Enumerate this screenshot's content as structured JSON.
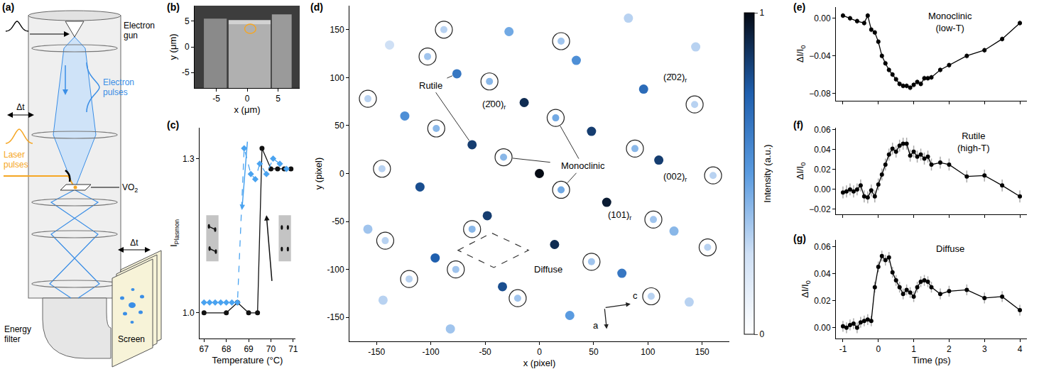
{
  "diagram": {
    "panel": "(a)",
    "electron_gun": "Electron gun",
    "electron_pulses": "Electron pulses",
    "delay": "Δt",
    "laser_pulses": "Laser pulses",
    "sample": "VO",
    "sample_sub": "2",
    "energy_filter": "Energy filter",
    "screen": "Screen",
    "screen_delay": "Δt"
  },
  "chart_data": [
    {
      "panel": "(b)",
      "type": "image",
      "xlabel": "x (μm)",
      "ylabel": "y (μm)",
      "xlim": [
        -8.5,
        8.5
      ],
      "ylim": [
        -8,
        8
      ],
      "xticks": [
        -5,
        0,
        5
      ],
      "yticks": [
        -5,
        0,
        5
      ],
      "highlight": {
        "x": 0.5,
        "y": 3.5,
        "r": 0.9,
        "color": "#f5a623"
      }
    },
    {
      "panel": "(c)",
      "type": "line",
      "xlabel": "Temperature (°C)",
      "ylabel": "I",
      "ylabel_sub": "Plasmon",
      "xlim": [
        66.8,
        71.1
      ],
      "ylim": [
        0.95,
        1.36
      ],
      "xticks": [
        67,
        68,
        69,
        70,
        71
      ],
      "yticks": [
        {
          "value": 1.0,
          "label": "1.0"
        },
        {
          "value": 1.3,
          "label": "1.3"
        }
      ],
      "series": [
        {
          "color": "#111111",
          "marker": "circle",
          "line_style": "solid",
          "x": [
            67,
            68,
            68.5,
            69,
            69.4,
            69.6,
            70,
            70.3,
            70.6,
            70.9
          ],
          "values": [
            1.0,
            1.0,
            1.02,
            1.0,
            1.0,
            1.32,
            1.28,
            1.28,
            1.28,
            1.28
          ]
        },
        {
          "color": "#4aa3f0",
          "marker": "diamond",
          "line_style": "dashed",
          "x": [
            67,
            67.25,
            67.5,
            67.75,
            68,
            68.25,
            68.5,
            68.8,
            69.1,
            69.3,
            69.5,
            69.8,
            70.1,
            70.4,
            70.7
          ],
          "values": [
            1.02,
            1.02,
            1.02,
            1.02,
            1.02,
            1.02,
            1.02,
            1.32,
            1.27,
            1.26,
            1.29,
            1.27,
            1.3,
            1.29,
            1.28
          ]
        }
      ]
    },
    {
      "panel": "(d)",
      "type": "scatter",
      "xlabel": "x (pixel)",
      "ylabel": "y (pixel)",
      "xlim": [
        -175,
        175
      ],
      "ylim": [
        -175,
        175
      ],
      "xticks": [
        -150,
        -100,
        -50,
        0,
        50,
        100,
        150
      ],
      "yticks": [
        -150,
        -100,
        -50,
        0,
        50,
        100,
        150
      ],
      "colorbar": {
        "title": "Intensity (a.u.)",
        "range": [
          0,
          1
        ],
        "ticks": [
          0,
          1
        ]
      },
      "series": [
        {
          "marker": "circle",
          "x": [
            0,
            62,
            -62,
            14,
            -14,
            110,
            -110,
            -48,
            48,
            96,
            -96,
            34,
            -34,
            -76,
            76,
            -158,
            -28,
            28,
            124,
            -124,
            -144,
            144,
            82,
            -82,
            -138,
            138
          ],
          "y": [
            0,
            -30,
            30,
            -74,
            74,
            14,
            -14,
            -44,
            44,
            88,
            -88,
            118,
            -118,
            104,
            -104,
            -58,
            148,
            -148,
            -60,
            60,
            -132,
            132,
            162,
            -162,
            134,
            -134
          ],
          "values": [
            1.0,
            0.95,
            0.85,
            0.9,
            0.9,
            0.85,
            0.8,
            0.85,
            0.85,
            0.7,
            0.75,
            0.55,
            0.8,
            0.65,
            0.65,
            0.35,
            0.45,
            0.5,
            0.4,
            0.55,
            0.3,
            0.3,
            0.3,
            0.35,
            0.25,
            0.3
          ]
        },
        {
          "marker": "circle-open",
          "x": [
            -158,
            -103,
            -46,
            20,
            -95,
            15,
            88,
            143,
            -145,
            -33,
            20,
            160,
            -62,
            105,
            -142,
            48,
            155,
            -77,
            -20,
            103,
            -120,
            -88
          ],
          "y": [
            78,
            122,
            96,
            138,
            47,
            58,
            26,
            72,
            5,
            17,
            -17,
            -2,
            -58,
            -48,
            -70,
            -92,
            -77,
            -100,
            -130,
            -128,
            -110,
            150
          ],
          "values": [
            0.3,
            0.35,
            0.4,
            0.35,
            0.4,
            0.45,
            0.4,
            0.3,
            0.3,
            0.4,
            0.45,
            0.3,
            0.4,
            0.35,
            0.3,
            0.35,
            0.3,
            0.35,
            0.35,
            0.3,
            0.3,
            0.3
          ]
        }
      ],
      "labels": [
        {
          "text": "Rutile",
          "series": 0,
          "targets": [
            13,
            2
          ]
        },
        {
          "text": "Monoclinic",
          "series": 1,
          "targets": [
            5,
            9,
            10
          ]
        }
      ],
      "miller_labels": [
        {
          "text": "(2̄00)",
          "sub": "r",
          "spot": 4
        },
        {
          "text": "(101)",
          "sub": "r",
          "spot": 1
        },
        {
          "text": "(002)",
          "sub": "r",
          "spot": 5
        },
        {
          "text": "(2̄02)",
          "sub": "r",
          "spot": 9
        }
      ],
      "region": {
        "text": "Diffuse",
        "points": [
          [
            -75,
            -80
          ],
          [
            -44,
            -62
          ],
          [
            -10,
            -80
          ],
          [
            -42,
            -98
          ]
        ]
      },
      "axes_labels": [
        "a",
        "c"
      ]
    },
    {
      "panel": "(e)",
      "type": "line",
      "title": [
        "Monoclinic",
        "(low-T)"
      ],
      "ylabel": "ΔI/I",
      "ylabel_sub": "0",
      "tick_labels": "y",
      "xlim": [
        -1.2,
        4.2
      ],
      "ylim": [
        -0.088,
        0.012
      ],
      "xticks": [
        -1,
        0,
        1,
        2,
        3,
        4
      ],
      "yticks": [
        {
          "value": -0.08,
          "label": "−0.08"
        },
        {
          "value": -0.04,
          "label": "−0.04"
        },
        {
          "value": 0,
          "label": "0.00"
        }
      ],
      "x": [
        -1,
        -0.8,
        -0.6,
        -0.4,
        -0.3,
        -0.2,
        -0.1,
        0,
        0.1,
        0.2,
        0.3,
        0.4,
        0.5,
        0.6,
        0.7,
        0.8,
        0.9,
        1.0,
        1.1,
        1.2,
        1.3,
        1.4,
        1.5,
        1.75,
        2,
        2.5,
        3,
        3.5,
        4
      ],
      "series": [
        {
          "color": "#000000",
          "marker": "circle",
          "line_style": "solid",
          "error": 0.003,
          "values": [
            0.003,
            0,
            -0.003,
            -0.005,
            0.003,
            -0.012,
            -0.015,
            -0.025,
            -0.04,
            -0.048,
            -0.055,
            -0.06,
            -0.065,
            -0.07,
            -0.072,
            -0.072,
            -0.074,
            -0.071,
            -0.068,
            -0.07,
            -0.064,
            -0.064,
            -0.063,
            -0.055,
            -0.05,
            -0.04,
            -0.034,
            -0.022,
            -0.005
          ]
        }
      ]
    },
    {
      "panel": "(f)",
      "type": "line",
      "title": [
        "Rutile",
        "(high-T)"
      ],
      "ylabel": "ΔI/I",
      "ylabel_sub": "0",
      "tick_labels": "y",
      "xlim": [
        -1.2,
        4.2
      ],
      "ylim": [
        -0.025,
        0.062
      ],
      "xticks": [
        -1,
        0,
        1,
        2,
        3,
        4
      ],
      "yticks": [
        {
          "value": -0.02,
          "label": "−0.02"
        },
        {
          "value": 0,
          "label": "0.00"
        },
        {
          "value": 0.02,
          "label": "0.02"
        },
        {
          "value": 0.04,
          "label": "0.04"
        },
        {
          "value": 0.06,
          "label": "0.06"
        }
      ],
      "x": [
        -1,
        -0.9,
        -0.8,
        -0.7,
        -0.6,
        -0.5,
        -0.4,
        -0.3,
        -0.2,
        -0.1,
        0,
        0.1,
        0.2,
        0.3,
        0.4,
        0.5,
        0.6,
        0.7,
        0.8,
        0.9,
        1.0,
        1.1,
        1.2,
        1.3,
        1.4,
        1.5,
        1.75,
        2,
        2.5,
        3,
        3.5,
        4
      ],
      "series": [
        {
          "color": "#000000",
          "marker": "circle",
          "line_style": "solid",
          "error": 0.006,
          "values": [
            -0.003,
            -0.002,
            0,
            -0.002,
            0,
            0.004,
            -0.007,
            -0.008,
            -0.001,
            -0.007,
            0.005,
            0.015,
            0.025,
            0.035,
            0.041,
            0.038,
            0.044,
            0.046,
            0.046,
            0.034,
            0.038,
            0.033,
            0.035,
            0.031,
            0.033,
            0.025,
            0.027,
            0.025,
            0.013,
            0.014,
            0.004,
            -0.007
          ]
        }
      ]
    },
    {
      "panel": "(g)",
      "type": "line",
      "title": [
        "Diffuse"
      ],
      "xlabel": "Time (ps)",
      "ylabel": "ΔI/I",
      "ylabel_sub": "0",
      "xlim": [
        -1.2,
        4.2
      ],
      "ylim": [
        -0.008,
        0.065
      ],
      "xticks": [
        -1,
        0,
        1,
        2,
        3,
        4
      ],
      "yticks": [
        {
          "value": 0,
          "label": "0.00"
        },
        {
          "value": 0.02,
          "label": "0.02"
        },
        {
          "value": 0.04,
          "label": "0.04"
        },
        {
          "value": 0.06,
          "label": "0.06"
        }
      ],
      "x": [
        -1,
        -0.9,
        -0.8,
        -0.7,
        -0.6,
        -0.5,
        -0.4,
        -0.3,
        -0.2,
        -0.1,
        0,
        0.1,
        0.2,
        0.3,
        0.4,
        0.5,
        0.6,
        0.7,
        0.8,
        0.9,
        1.0,
        1.1,
        1.2,
        1.3,
        1.4,
        1.5,
        1.75,
        2,
        2.5,
        3,
        3.5,
        4
      ],
      "series": [
        {
          "color": "#000000",
          "marker": "circle",
          "line_style": "solid",
          "error": 0.004,
          "values": [
            0.001,
            0,
            0.002,
            0.003,
            0,
            0.004,
            0.005,
            0.006,
            0.005,
            0.03,
            0.045,
            0.053,
            0.05,
            0.052,
            0.041,
            0.035,
            0.03,
            0.025,
            0.028,
            0.026,
            0.023,
            0.03,
            0.034,
            0.035,
            0.034,
            0.03,
            0.025,
            0.027,
            0.028,
            0.022,
            0.023,
            0.013
          ]
        }
      ]
    }
  ]
}
